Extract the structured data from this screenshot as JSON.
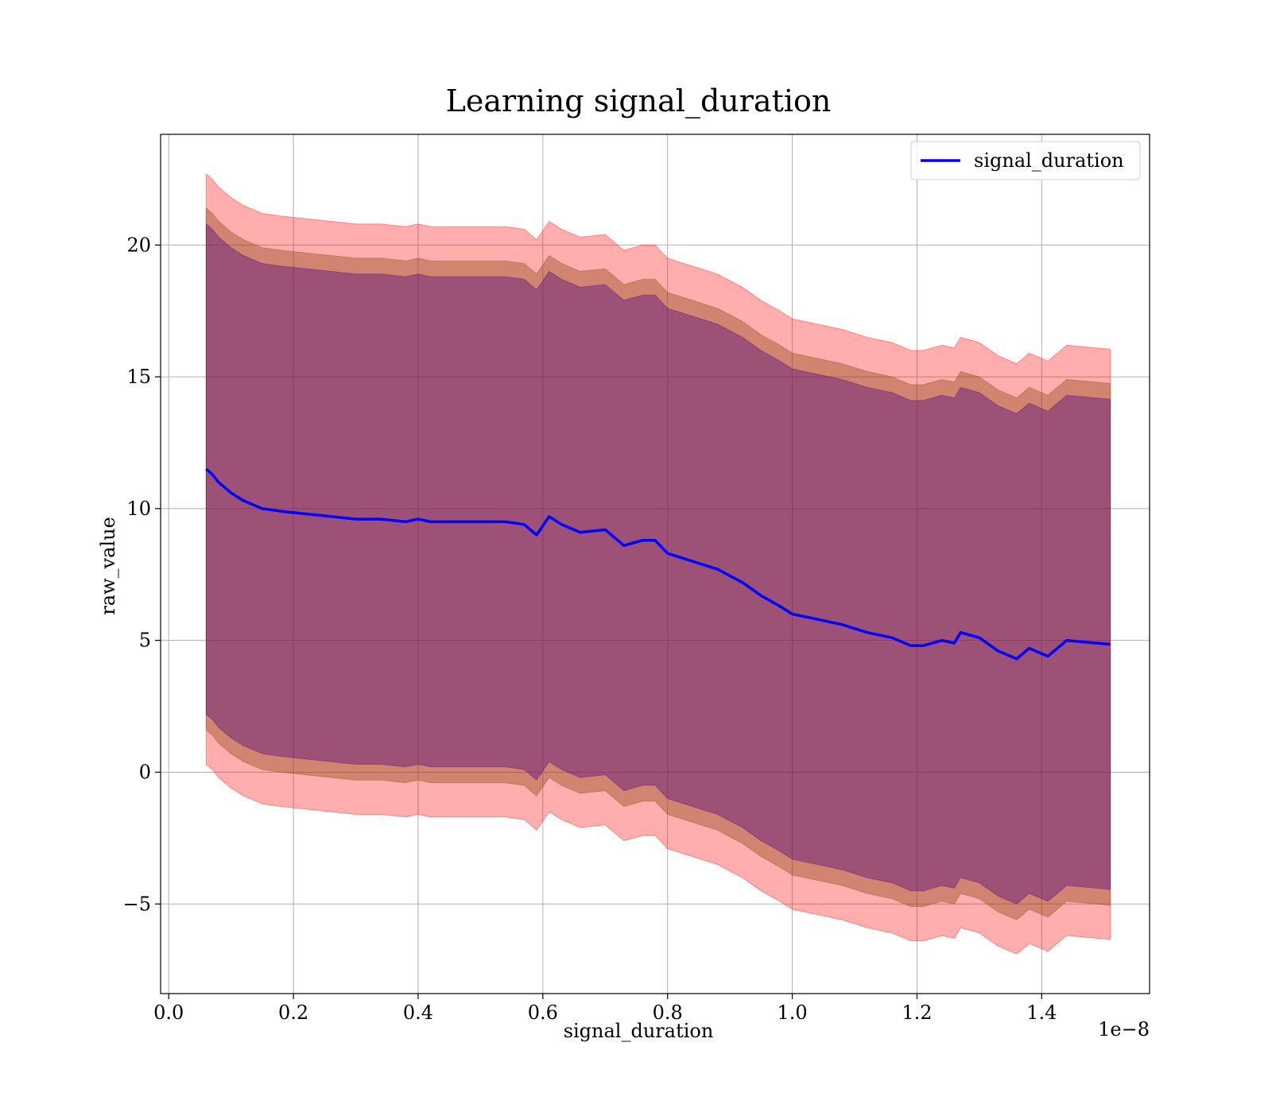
{
  "chart_data": {
    "type": "line",
    "title": "Learning signal_duration",
    "xlabel": "signal_duration",
    "ylabel": "raw_value",
    "x_offset_label": "1e−8",
    "xlim": [
      -0.013,
      1.573
    ],
    "ylim": [
      -8.4,
      24.2
    ],
    "x_ticks": [
      0.0,
      0.2,
      0.4,
      0.6,
      0.8,
      1.0,
      1.2,
      1.4
    ],
    "x_tick_labels": [
      "0.0",
      "0.2",
      "0.4",
      "0.6",
      "0.8",
      "1.0",
      "1.2",
      "1.4"
    ],
    "y_ticks": [
      -5,
      0,
      5,
      10,
      15,
      20
    ],
    "y_tick_labels": [
      "−5",
      "0",
      "5",
      "10",
      "15",
      "20"
    ],
    "grid": true,
    "legend": {
      "position": "top-right",
      "entries": [
        "signal_duration"
      ]
    },
    "x": [
      0.06,
      0.07,
      0.08,
      0.1,
      0.12,
      0.15,
      0.18,
      0.22,
      0.26,
      0.3,
      0.34,
      0.38,
      0.4,
      0.42,
      0.46,
      0.5,
      0.54,
      0.57,
      0.59,
      0.61,
      0.63,
      0.66,
      0.7,
      0.73,
      0.76,
      0.78,
      0.8,
      0.84,
      0.88,
      0.92,
      0.95,
      0.98,
      1.0,
      1.04,
      1.08,
      1.12,
      1.16,
      1.19,
      1.21,
      1.24,
      1.26,
      1.27,
      1.3,
      1.33,
      1.36,
      1.38,
      1.41,
      1.44,
      1.51
    ],
    "series": [
      {
        "name": "signal_duration",
        "color": "#0000ff",
        "values": [
          11.5,
          11.3,
          11.0,
          10.6,
          10.3,
          10.0,
          9.9,
          9.8,
          9.7,
          9.6,
          9.6,
          9.5,
          9.6,
          9.5,
          9.5,
          9.5,
          9.5,
          9.4,
          9.0,
          9.7,
          9.4,
          9.1,
          9.2,
          8.6,
          8.8,
          8.8,
          8.3,
          8.0,
          7.7,
          7.2,
          6.7,
          6.3,
          6.0,
          5.8,
          5.6,
          5.3,
          5.1,
          4.8,
          4.8,
          5.0,
          4.9,
          5.3,
          5.1,
          4.6,
          4.3,
          4.7,
          4.4,
          5.0,
          4.85
        ]
      }
    ],
    "bands": [
      {
        "name": "outer",
        "color": "#ff0000",
        "opacity": 0.32,
        "offset": 11.2
      },
      {
        "name": "middle",
        "color": "#8b4513",
        "opacity": 0.4,
        "offset": 9.9
      },
      {
        "name": "inner",
        "color": "#4b0082",
        "opacity": 0.38,
        "offset": 9.3
      }
    ]
  }
}
